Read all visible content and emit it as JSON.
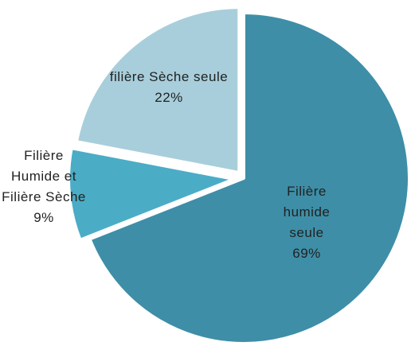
{
  "chart_data": {
    "type": "pie",
    "categories": [
      "Filière humide seule",
      "Filière Humide et Filière Sèche",
      "filière Sèche seule"
    ],
    "values": [
      69,
      9,
      22
    ],
    "value_labels": [
      "69%",
      "9%",
      "22%"
    ],
    "colors": [
      "#3e8ea7",
      "#4bacc6",
      "#a8cedb"
    ]
  }
}
